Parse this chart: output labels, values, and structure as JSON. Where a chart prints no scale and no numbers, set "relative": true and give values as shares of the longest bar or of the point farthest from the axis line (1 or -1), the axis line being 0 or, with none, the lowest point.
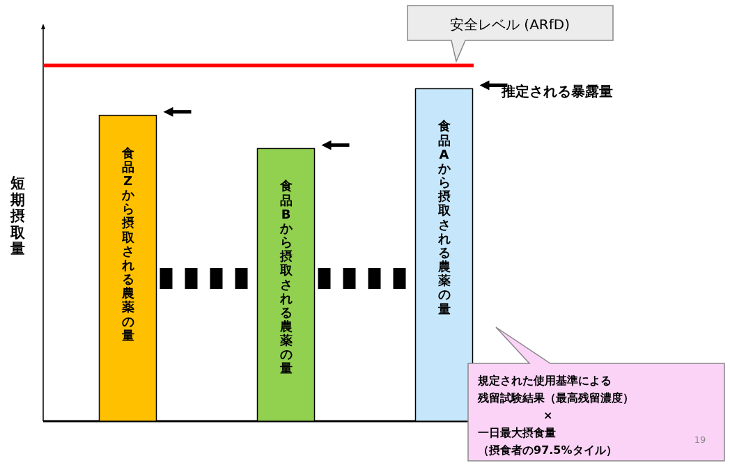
{
  "chart_data": {
    "type": "bar",
    "relative": true,
    "ylabel": "短期摂取量",
    "categories": [
      "食品Zから摂取される農薬の量",
      "食品Bから摂取される農薬の量",
      "食品Aから摂取される農薬の量"
    ],
    "values": [
      0.92,
      0.82,
      1
    ],
    "colors": [
      "#ffc000",
      "#92d050",
      "#c6e7fb"
    ],
    "ref_lines": [
      {
        "axis": "y",
        "value": 1.07,
        "label": "安全レベル (ARfD)",
        "color": "#ff0000"
      }
    ],
    "annotations": [
      "推定される暴露量",
      "規定された使用基準による",
      "残留試験結果（最高残留濃度）",
      "×",
      "一日最大摂食量",
      "（摂食者の97.5%タイル）",
      "19"
    ]
  }
}
